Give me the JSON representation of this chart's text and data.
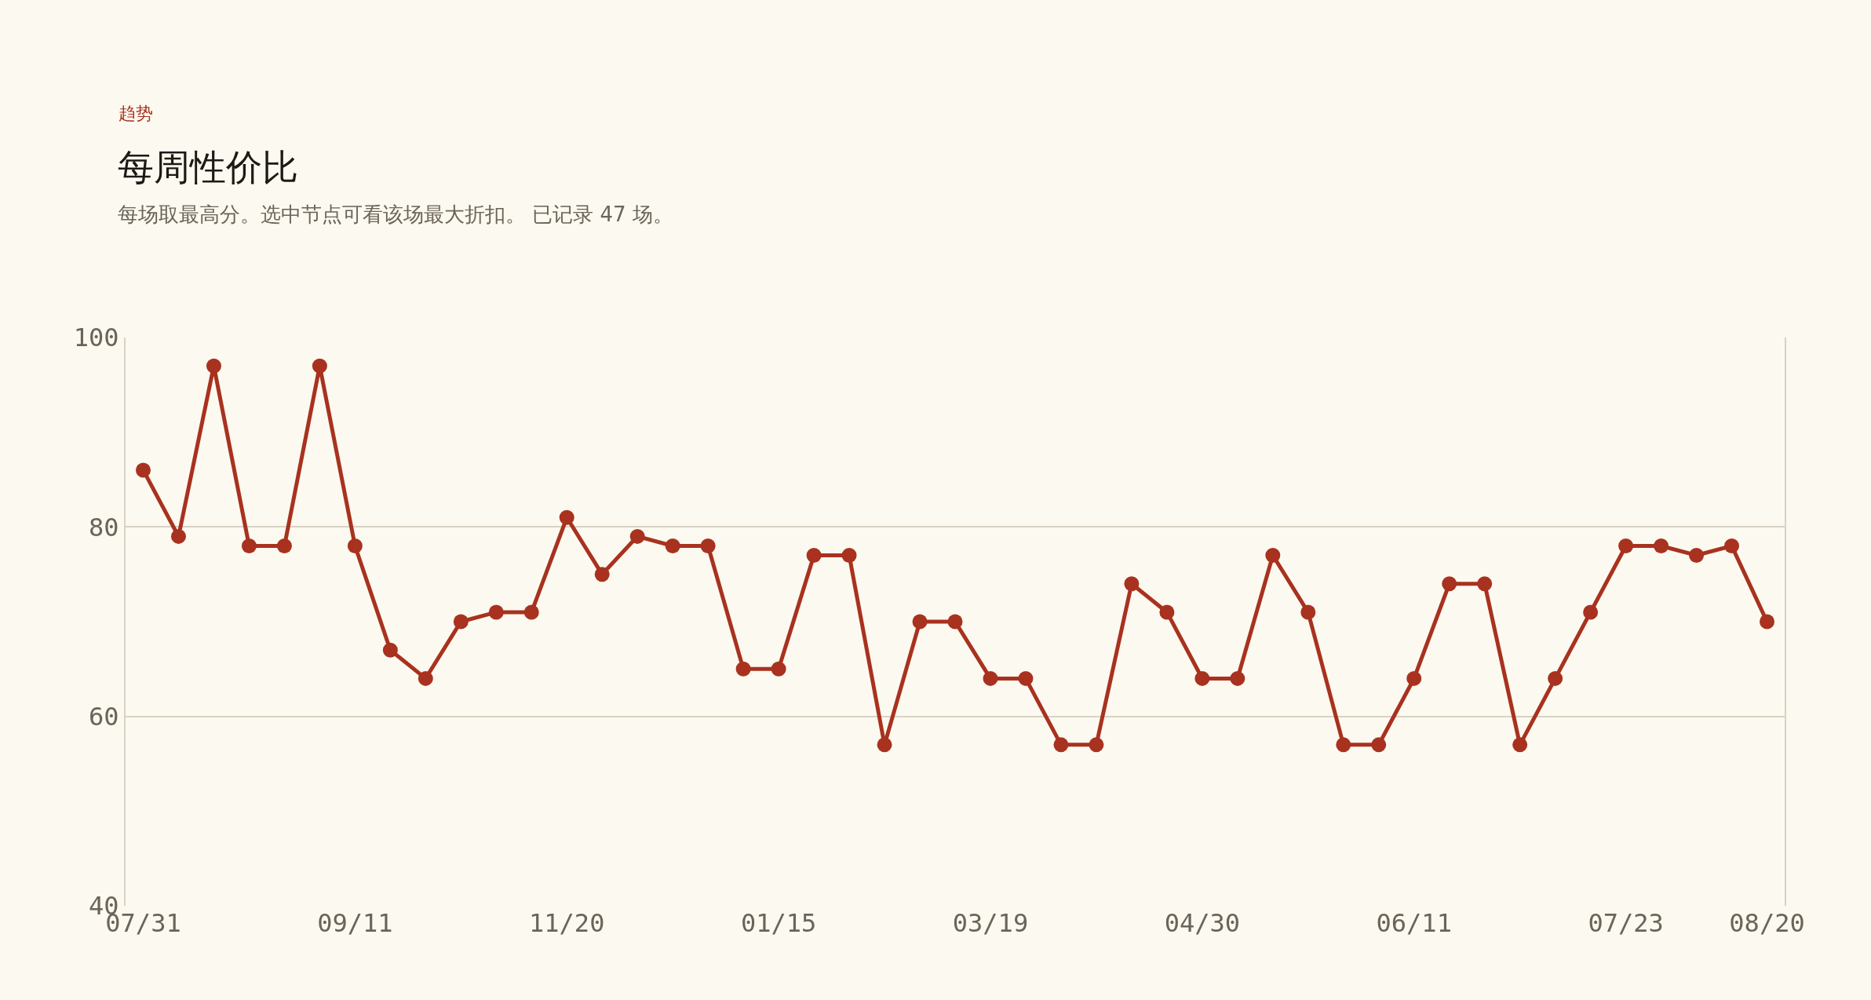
{
  "chart_data": {
    "type": "line",
    "title": "每周性价比",
    "subtitle": "每场取最高分。选中节点可看该场最大折扣。 已记录 47 场。",
    "annotations": [
      "趋势"
    ],
    "categories": [
      "07/31",
      null,
      null,
      null,
      null,
      null,
      "09/11",
      null,
      null,
      null,
      null,
      null,
      "11/20",
      null,
      null,
      null,
      null,
      null,
      "01/15",
      null,
      null,
      null,
      null,
      null,
      "03/19",
      null,
      null,
      null,
      null,
      null,
      "04/30",
      null,
      null,
      null,
      null,
      null,
      "06/11",
      null,
      null,
      null,
      null,
      null,
      "07/23",
      null,
      null,
      null,
      "08/20"
    ],
    "series": [
      {
        "color": "#a8321f",
        "values": [
          86,
          79,
          97,
          78,
          78,
          97,
          78,
          67,
          64,
          70,
          71,
          71,
          81,
          75,
          79,
          78,
          78,
          65,
          65,
          77,
          77,
          57,
          70,
          70,
          64,
          64,
          57,
          57,
          74,
          71,
          64,
          64,
          77,
          71,
          57,
          57,
          64,
          74,
          74,
          57,
          64,
          71,
          78,
          78,
          77,
          78,
          70
        ]
      }
    ],
    "ylim": [
      40,
      100
    ],
    "yticks": [
      40,
      60,
      80,
      100
    ],
    "grid": "y",
    "marker": "circle",
    "line_style": "solid"
  }
}
